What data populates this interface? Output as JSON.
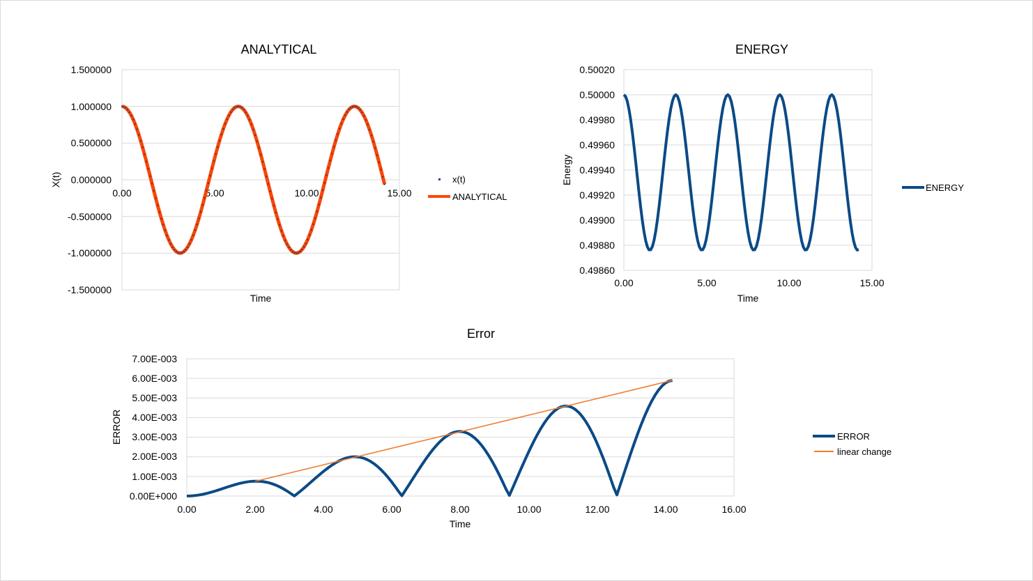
{
  "chart_data": [
    {
      "id": "analytical",
      "type": "line",
      "title": "ANALYTICAL",
      "xlabel": "Time",
      "ylabel": "X(t)",
      "xlim": [
        0,
        15
      ],
      "ylim": [
        -1.5,
        1.5
      ],
      "x_ticks": [
        "0.00",
        "5.00",
        "10.00",
        "15.00"
      ],
      "y_ticks": [
        "1.500000",
        "1.000000",
        "0.500000",
        "0.000000",
        "-0.500000",
        "-1.000000",
        "-1.500000"
      ],
      "grid": true,
      "legend_position": "right",
      "series": [
        {
          "name": "x(t)",
          "style": "markers",
          "color": "#264478",
          "formula": "cos(t)",
          "t_range": [
            0,
            14.2
          ],
          "points": 140
        },
        {
          "name": "ANALYTICAL",
          "style": "line",
          "color": "#ff4500",
          "formula": "cos(t)",
          "t_range": [
            0,
            14.2
          ],
          "points": 140
        }
      ]
    },
    {
      "id": "energy",
      "type": "line",
      "title": "ENERGY",
      "xlabel": "Time",
      "ylabel": "Energy",
      "xlim": [
        0,
        15
      ],
      "ylim": [
        0.4986,
        0.5002
      ],
      "x_ticks": [
        "0.00",
        "5.00",
        "10.00",
        "15.00"
      ],
      "y_ticks": [
        "0.50020",
        "0.50000",
        "0.49980",
        "0.49960",
        "0.49940",
        "0.49920",
        "0.49900",
        "0.49880",
        "0.49860"
      ],
      "grid": true,
      "legend_position": "right",
      "series": [
        {
          "name": "ENERGY",
          "color": "#0b4a86",
          "min": 0.49876,
          "max": 0.5,
          "period": 3.14159,
          "t_range": [
            0,
            14.2
          ],
          "points": 140
        }
      ]
    },
    {
      "id": "error",
      "type": "line",
      "title": "Error",
      "xlabel": "Time",
      "ylabel": "ERROR",
      "xlim": [
        0,
        16
      ],
      "ylim": [
        0,
        0.007
      ],
      "x_ticks": [
        "0.00",
        "2.00",
        "4.00",
        "6.00",
        "8.00",
        "10.00",
        "12.00",
        "14.00",
        "16.00"
      ],
      "y_ticks": [
        "7.00E-003",
        "6.00E-003",
        "5.00E-003",
        "4.00E-003",
        "3.00E-003",
        "2.00E-003",
        "1.00E-003",
        "0.00E+000"
      ],
      "grid": true,
      "legend_position": "right",
      "series": [
        {
          "name": "ERROR",
          "color": "#0b4a86",
          "amplitude_slope": 0.000416,
          "t_range": [
            0,
            14.2
          ],
          "points": 140
        },
        {
          "name": "linear change",
          "color": "#ed7d31",
          "x": [
            2.0,
            14.2
          ],
          "y": [
            0.00075,
            0.0059
          ]
        }
      ]
    }
  ]
}
